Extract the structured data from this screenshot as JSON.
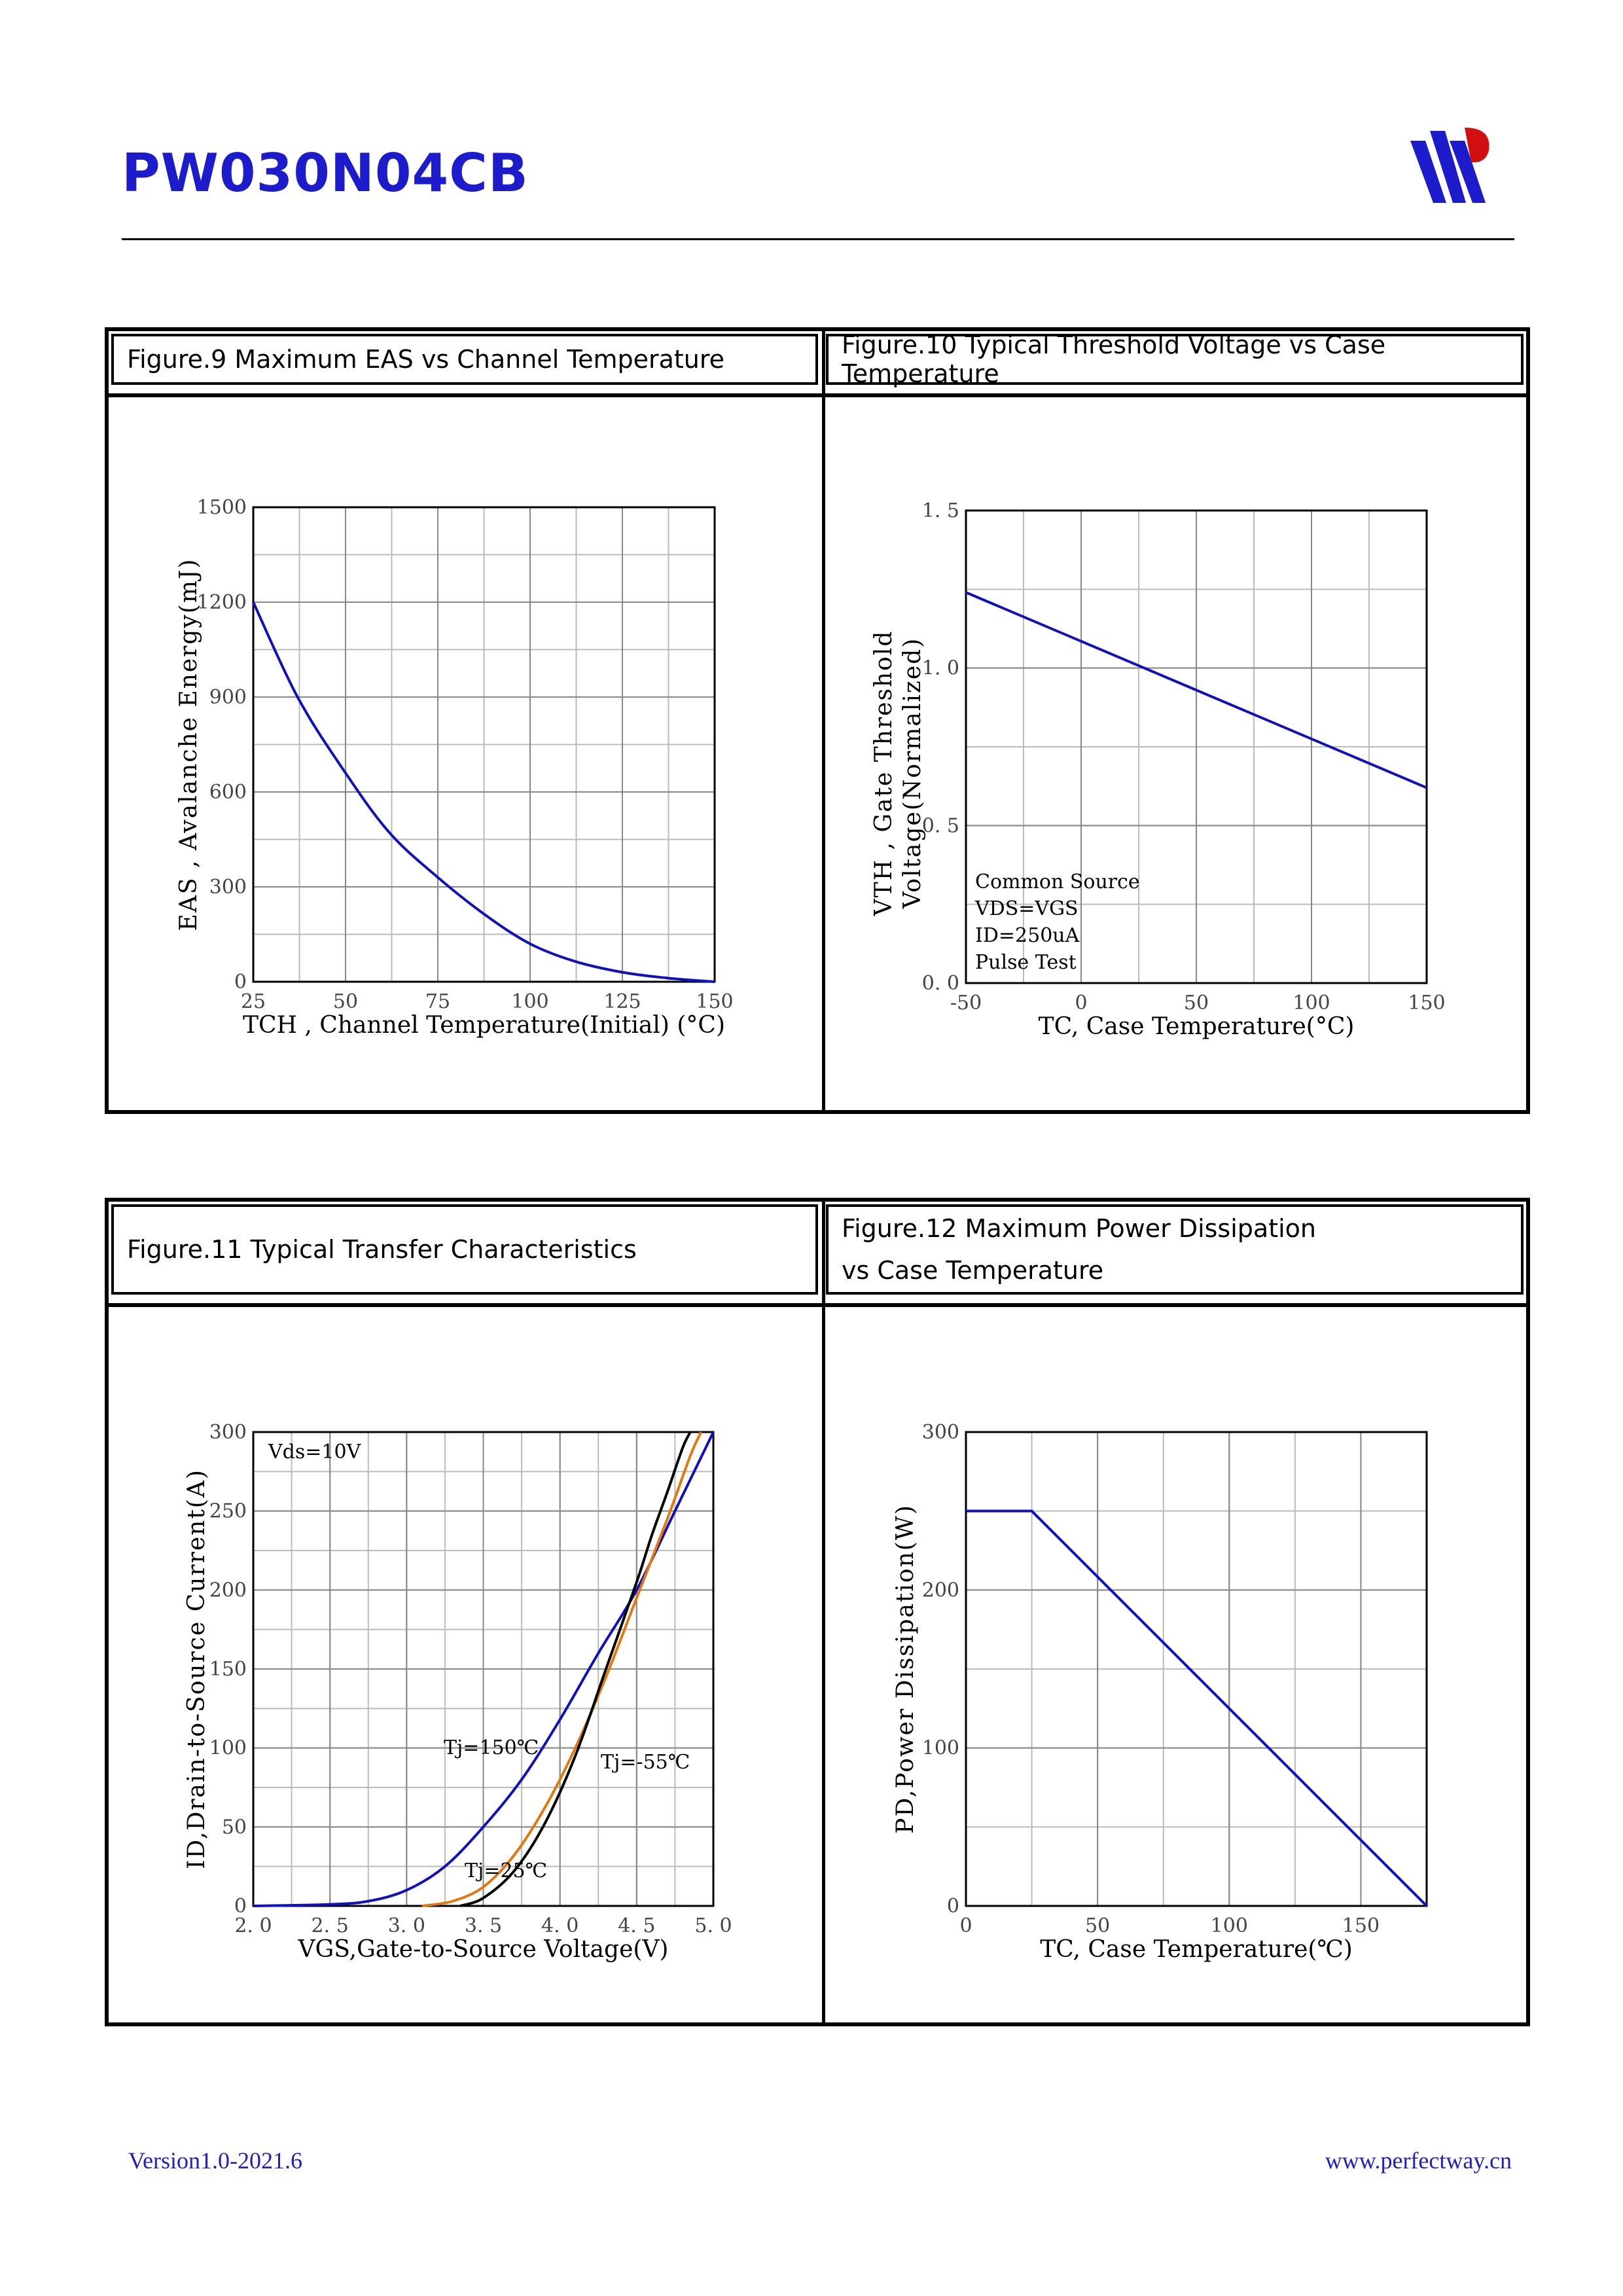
{
  "header": {
    "title": "PW030N04CB"
  },
  "footer": {
    "version": "Version1.0-2021.6",
    "website": "www.perfectway.cn"
  },
  "colors": {
    "curve_blue": "#1010c0",
    "curve_orange": "#e07a10",
    "curve_black": "#000000",
    "brand_blue": "#1c1ccc",
    "brand_red": "#d01010"
  },
  "chart_data": [
    {
      "id": "fig9",
      "heading": "Figure.9 Maximum EAS vs Channel Temperature",
      "type": "line",
      "xlabel": "TCH , Channel Temperature(Initial) (°C)",
      "ylabel": "EAS , Avalanche Energy(mJ)",
      "xlim": [
        25,
        150
      ],
      "ylim": [
        0,
        1500
      ],
      "xticks": [
        25,
        50,
        75,
        100,
        125,
        150
      ],
      "yticks": [
        0,
        300,
        600,
        900,
        1200,
        1500
      ],
      "xtick_labels": [
        "25",
        "50",
        "75",
        "100",
        "125",
        "150"
      ],
      "ytick_labels": [
        "0",
        "300",
        "600",
        "900",
        "1200",
        "1500"
      ],
      "grid": true,
      "series": [
        {
          "color": "#1010c0",
          "x": [
            25,
            37,
            50,
            62,
            75,
            88,
            100,
            112,
            125,
            137,
            150
          ],
          "y": [
            1200,
            900,
            660,
            470,
            330,
            210,
            120,
            65,
            30,
            12,
            0
          ]
        }
      ],
      "annotations": []
    },
    {
      "id": "fig10",
      "heading": "Figure.10 Typical Threshold Voltage vs Case Temperature",
      "type": "line",
      "xlabel": "TC, Case Temperature(°C)",
      "ylabel_lines": [
        "VTH , Gate Threshold",
        "Voltage(Normalized)"
      ],
      "xlim": [
        -50,
        150
      ],
      "ylim": [
        0,
        1.5
      ],
      "xticks": [
        -50,
        0,
        50,
        100,
        150
      ],
      "yticks": [
        0,
        0.5,
        1.0,
        1.5
      ],
      "xtick_labels": [
        "-50",
        "0",
        "50",
        "100",
        "150"
      ],
      "ytick_labels": [
        "0. 0",
        "0. 5",
        "1. 0",
        "1. 5"
      ],
      "grid": true,
      "series": [
        {
          "color": "#1010c0",
          "x": [
            -50,
            150
          ],
          "y": [
            1.24,
            0.62
          ]
        }
      ],
      "annotations": [
        "Common Source",
        "VDS=VGS",
        "ID=250uA",
        "Pulse Test"
      ]
    },
    {
      "id": "fig11",
      "heading": "Figure.11 Typical Transfer Characteristics",
      "type": "line",
      "xlabel": "VGS,Gate-to-Source Voltage(V)",
      "ylabel": "ID,Drain-to-Source Current(A)",
      "xlim": [
        2.0,
        5.0
      ],
      "ylim": [
        0,
        300
      ],
      "xticks": [
        2.0,
        2.5,
        3.0,
        3.5,
        4.0,
        4.5,
        5.0
      ],
      "yticks": [
        0,
        50,
        100,
        150,
        200,
        250,
        300
      ],
      "xtick_labels": [
        "2. 0",
        "2. 5",
        "3. 0",
        "3. 5",
        "4. 0",
        "4. 5",
        "5. 0"
      ],
      "ytick_labels": [
        "0",
        "50",
        "100",
        "150",
        "200",
        "250",
        "300"
      ],
      "grid": true,
      "series": [
        {
          "name": "Tj=150℃",
          "color": "#1010c0",
          "x": [
            2.0,
            2.5,
            2.75,
            3.0,
            3.25,
            3.5,
            3.75,
            4.0,
            4.25,
            4.5,
            4.75,
            5.0
          ],
          "y": [
            0,
            1,
            3,
            10,
            25,
            50,
            80,
            118,
            160,
            200,
            250,
            300
          ]
        },
        {
          "name": "Tj=25℃",
          "color": "#e07a10",
          "x": [
            3.1,
            3.3,
            3.5,
            3.7,
            3.9,
            4.1,
            4.3,
            4.5,
            4.7,
            4.85,
            4.92
          ],
          "y": [
            0,
            3,
            12,
            32,
            62,
            100,
            145,
            195,
            245,
            285,
            300
          ]
        },
        {
          "name": "Tj=-55℃",
          "color": "#000000",
          "x": [
            3.35,
            3.5,
            3.7,
            3.9,
            4.1,
            4.3,
            4.5,
            4.6,
            4.7,
            4.8,
            4.85
          ],
          "y": [
            0,
            5,
            22,
            52,
            95,
            150,
            205,
            235,
            262,
            290,
            300
          ]
        }
      ],
      "annotations": [
        "Vds=10V",
        "Tj=150℃",
        "Tj=25℃",
        "Tj=-55℃"
      ]
    },
    {
      "id": "fig12",
      "heading_lines": [
        "Figure.12 Maximum Power Dissipation",
        "vs Case Temperature"
      ],
      "type": "line",
      "xlabel": "TC, Case Temperature(℃)",
      "ylabel": "PD,Power Dissipation(W)",
      "xlim": [
        0,
        175
      ],
      "ylim": [
        0,
        300
      ],
      "xticks": [
        0,
        50,
        100,
        150
      ],
      "yticks": [
        0,
        100,
        200,
        300
      ],
      "xtick_labels": [
        "0",
        "50",
        "100",
        "150"
      ],
      "ytick_labels": [
        "0",
        "100",
        "200",
        "300"
      ],
      "grid": true,
      "series": [
        {
          "color": "#1010c0",
          "x": [
            0,
            25,
            175
          ],
          "y": [
            250,
            250,
            0
          ]
        }
      ],
      "annotations": []
    }
  ]
}
